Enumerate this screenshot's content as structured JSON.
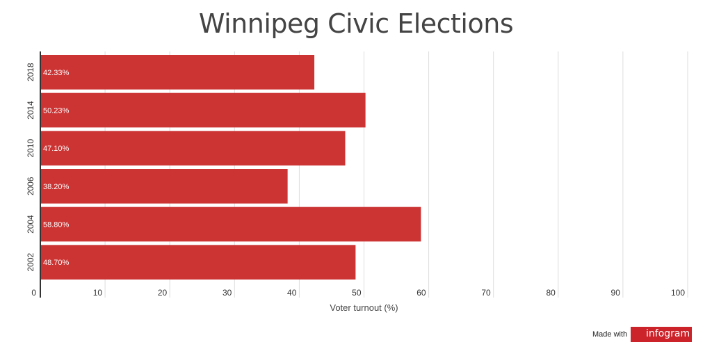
{
  "chart_data": {
    "type": "bar",
    "orientation": "horizontal",
    "title": "Winnipeg Civic Elections",
    "xlabel": "Voter turnout (%)",
    "ylabel": "",
    "categories": [
      "2018",
      "2014",
      "2010",
      "2006",
      "2004",
      "2002"
    ],
    "values": [
      42.33,
      50.23,
      47.1,
      38.2,
      58.8,
      48.7
    ],
    "value_labels": [
      "42.33%",
      "50.23%",
      "47.10%",
      "38.20%",
      "58.80%",
      "48.70%"
    ],
    "xlim": [
      0,
      100
    ],
    "xticks": [
      "0",
      "10",
      "20",
      "30",
      "40",
      "50",
      "60",
      "70",
      "80",
      "90",
      "100"
    ],
    "grid": true,
    "bar_color": "#cc3333",
    "grid_color": "#dddddd"
  },
  "credit": {
    "prefix": "Made with",
    "logo": "infogram",
    "color": "#cc2229"
  }
}
